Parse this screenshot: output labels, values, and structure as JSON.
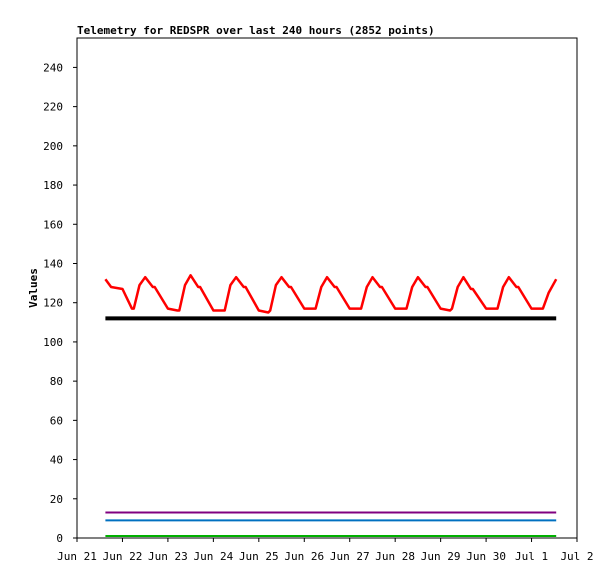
{
  "chart_data": {
    "type": "line",
    "title": "Telemetry for REDSPR over last 240 hours (2852 points)",
    "xlabel": "",
    "ylabel": "Values",
    "ylim": [
      0,
      255
    ],
    "yticks": [
      0,
      20,
      40,
      60,
      80,
      100,
      120,
      140,
      160,
      180,
      200,
      220,
      240
    ],
    "xlim": [
      "Jun 21",
      "Jul 2"
    ],
    "xtick_labels": [
      "Jun 21",
      "Jun 22",
      "Jun 23",
      "Jun 24",
      "Jun 25",
      "Jun 26",
      "Jun 27",
      "Jun 28",
      "Jun 29",
      "Jun 30",
      "Jul 1",
      "Jul 2"
    ],
    "grid": false,
    "series": [
      {
        "color": "#ff0000",
        "x": [
          "Jun 21 15:00",
          "Jun 21 18:00",
          "Jun 22 00:00",
          "Jun 22 05:00",
          "Jun 22 06:00",
          "Jun 22 09:00",
          "Jun 22 12:00",
          "Jun 22 16:00",
          "Jun 22 17:00",
          "Jun 23 00:00",
          "Jun 23 05:00",
          "Jun 23 06:00",
          "Jun 23 09:00",
          "Jun 23 12:00",
          "Jun 23 16:00",
          "Jun 23 17:00",
          "Jun 24 00:00",
          "Jun 24 05:00",
          "Jun 24 06:00",
          "Jun 24 09:00",
          "Jun 24 12:00",
          "Jun 24 16:00",
          "Jun 24 17:00",
          "Jun 25 00:00",
          "Jun 25 05:00",
          "Jun 25 06:00",
          "Jun 25 09:00",
          "Jun 25 12:00",
          "Jun 25 16:00",
          "Jun 25 17:00",
          "Jun 26 00:00",
          "Jun 26 05:00",
          "Jun 26 06:00",
          "Jun 26 09:00",
          "Jun 26 12:00",
          "Jun 26 16:00",
          "Jun 26 17:00",
          "Jun 27 00:00",
          "Jun 27 05:00",
          "Jun 27 06:00",
          "Jun 27 09:00",
          "Jun 27 12:00",
          "Jun 27 16:00",
          "Jun 27 17:00",
          "Jun 28 00:00",
          "Jun 28 05:00",
          "Jun 28 06:00",
          "Jun 28 09:00",
          "Jun 28 12:00",
          "Jun 28 16:00",
          "Jun 28 17:00",
          "Jun 29 00:00",
          "Jun 29 05:00",
          "Jun 29 06:00",
          "Jun 29 09:00",
          "Jun 29 12:00",
          "Jun 29 16:00",
          "Jun 29 17:00",
          "Jun 30 00:00",
          "Jun 30 05:00",
          "Jun 30 06:00",
          "Jun 30 09:00",
          "Jun 30 12:00",
          "Jun 30 16:00",
          "Jun 30 17:00",
          "Jul 1 00:00",
          "Jul 1 05:00",
          "Jul 1 06:00",
          "Jul 1 09:00",
          "Jul 1 13:00"
        ],
        "values": [
          132,
          128,
          127,
          117,
          117,
          129,
          133,
          128,
          128,
          117,
          116,
          116,
          129,
          134,
          128,
          128,
          116,
          116,
          116,
          129,
          133,
          128,
          128,
          116,
          115,
          116,
          129,
          133,
          128,
          128,
          117,
          117,
          117,
          128,
          133,
          128,
          128,
          117,
          117,
          117,
          128,
          133,
          128,
          128,
          117,
          117,
          117,
          128,
          133,
          128,
          128,
          117,
          116,
          117,
          128,
          133,
          127,
          127,
          117,
          117,
          117,
          128,
          133,
          128,
          128,
          117,
          117,
          117,
          125,
          132
        ]
      },
      {
        "color": "#000000",
        "x": [
          "Jun 21 15:00",
          "Jul 1 13:00"
        ],
        "values": [
          112,
          112
        ]
      },
      {
        "color": "#800080",
        "x": [
          "Jun 21 15:00",
          "Jul 1 13:00"
        ],
        "values": [
          13,
          13
        ]
      },
      {
        "color": "#0070c0",
        "x": [
          "Jun 21 15:00",
          "Jul 1 13:00"
        ],
        "values": [
          9,
          9
        ]
      },
      {
        "color": "#00b000",
        "x": [
          "Jun 21 15:00",
          "Jul 1 13:00"
        ],
        "values": [
          1,
          1
        ]
      }
    ]
  }
}
